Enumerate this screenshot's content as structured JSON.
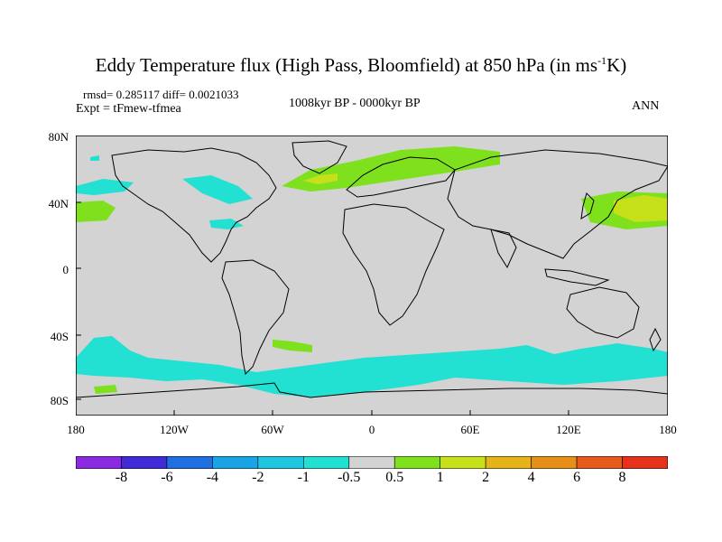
{
  "title": {
    "main": "Eddy Temperature flux (High Pass, Bloomfield) at 850 hPa (in ms",
    "sup": "-1",
    "tail": "K)"
  },
  "subtitle": {
    "stats": "rmsd= 0.285117 diff= 0.0021033",
    "expt": "Expt = tFmew-tfmea",
    "period": "1008kyr BP - 0000kyr BP",
    "season": "ANN"
  },
  "axes": {
    "y_ticks": [
      "80N",
      "40N",
      "0",
      "40S",
      "80S"
    ],
    "x_ticks": [
      "180",
      "120W",
      "60W",
      "0",
      "60E",
      "120E",
      "180"
    ]
  },
  "colorbar": {
    "colors": [
      "#8a2be2",
      "#3f2ad6",
      "#1f6fe0",
      "#1aa4e6",
      "#1ec6e0",
      "#22e0d2",
      "#d3d3d3",
      "#7fe01e",
      "#c6e01a",
      "#e6b41a",
      "#e6901a",
      "#e65a1a",
      "#e6321a"
    ],
    "labels": [
      "-8",
      "-6",
      "-4",
      "-2",
      "-1",
      "-0.5",
      "0.5",
      "1",
      "2",
      "4",
      "6",
      "8"
    ]
  },
  "map_colors": {
    "ocean_land": "#d3d3d3",
    "negative": "#22e0d2",
    "positive_low": "#7fe01e",
    "positive_mid": "#c6e01a",
    "coast": "#000000"
  }
}
